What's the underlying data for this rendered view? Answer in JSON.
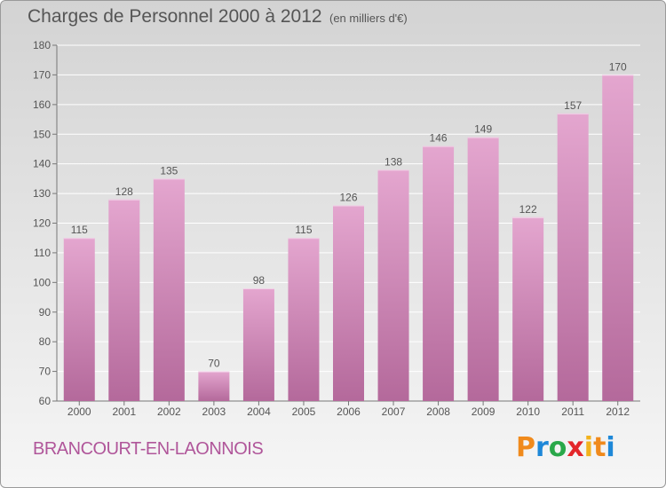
{
  "title": "Charges de Personnel 2000 à 2012",
  "subtitle": "(en milliers d'€)",
  "commune": "BRANCOURT-EN-LAONNOIS",
  "brand": {
    "letters": [
      "P",
      "r",
      "o",
      "x",
      "i",
      "t",
      "i"
    ],
    "colors": [
      "#f08a1c",
      "#1e88d8",
      "#2aa84a",
      "#e3262a",
      "#f2b21c",
      "#f08a1c",
      "#1e88d8"
    ]
  },
  "colors": {
    "bar_top": "#e4a6cf",
    "bar_bottom": "#b4699b",
    "text": "#555555",
    "accent": "#b0569a"
  },
  "chart_data": {
    "type": "bar",
    "title": "Charges de Personnel 2000 à 2012",
    "subtitle": "(en milliers d'€)",
    "categories": [
      "2000",
      "2001",
      "2002",
      "2003",
      "2004",
      "2005",
      "2006",
      "2007",
      "2008",
      "2009",
      "2010",
      "2011",
      "2012"
    ],
    "values": [
      115,
      128,
      135,
      70,
      98,
      115,
      126,
      138,
      146,
      149,
      122,
      157,
      170
    ],
    "ylim": [
      60,
      180
    ],
    "yticks": [
      60,
      70,
      80,
      90,
      100,
      110,
      120,
      130,
      140,
      150,
      160,
      170,
      180
    ],
    "grid": true,
    "legend": "none"
  }
}
